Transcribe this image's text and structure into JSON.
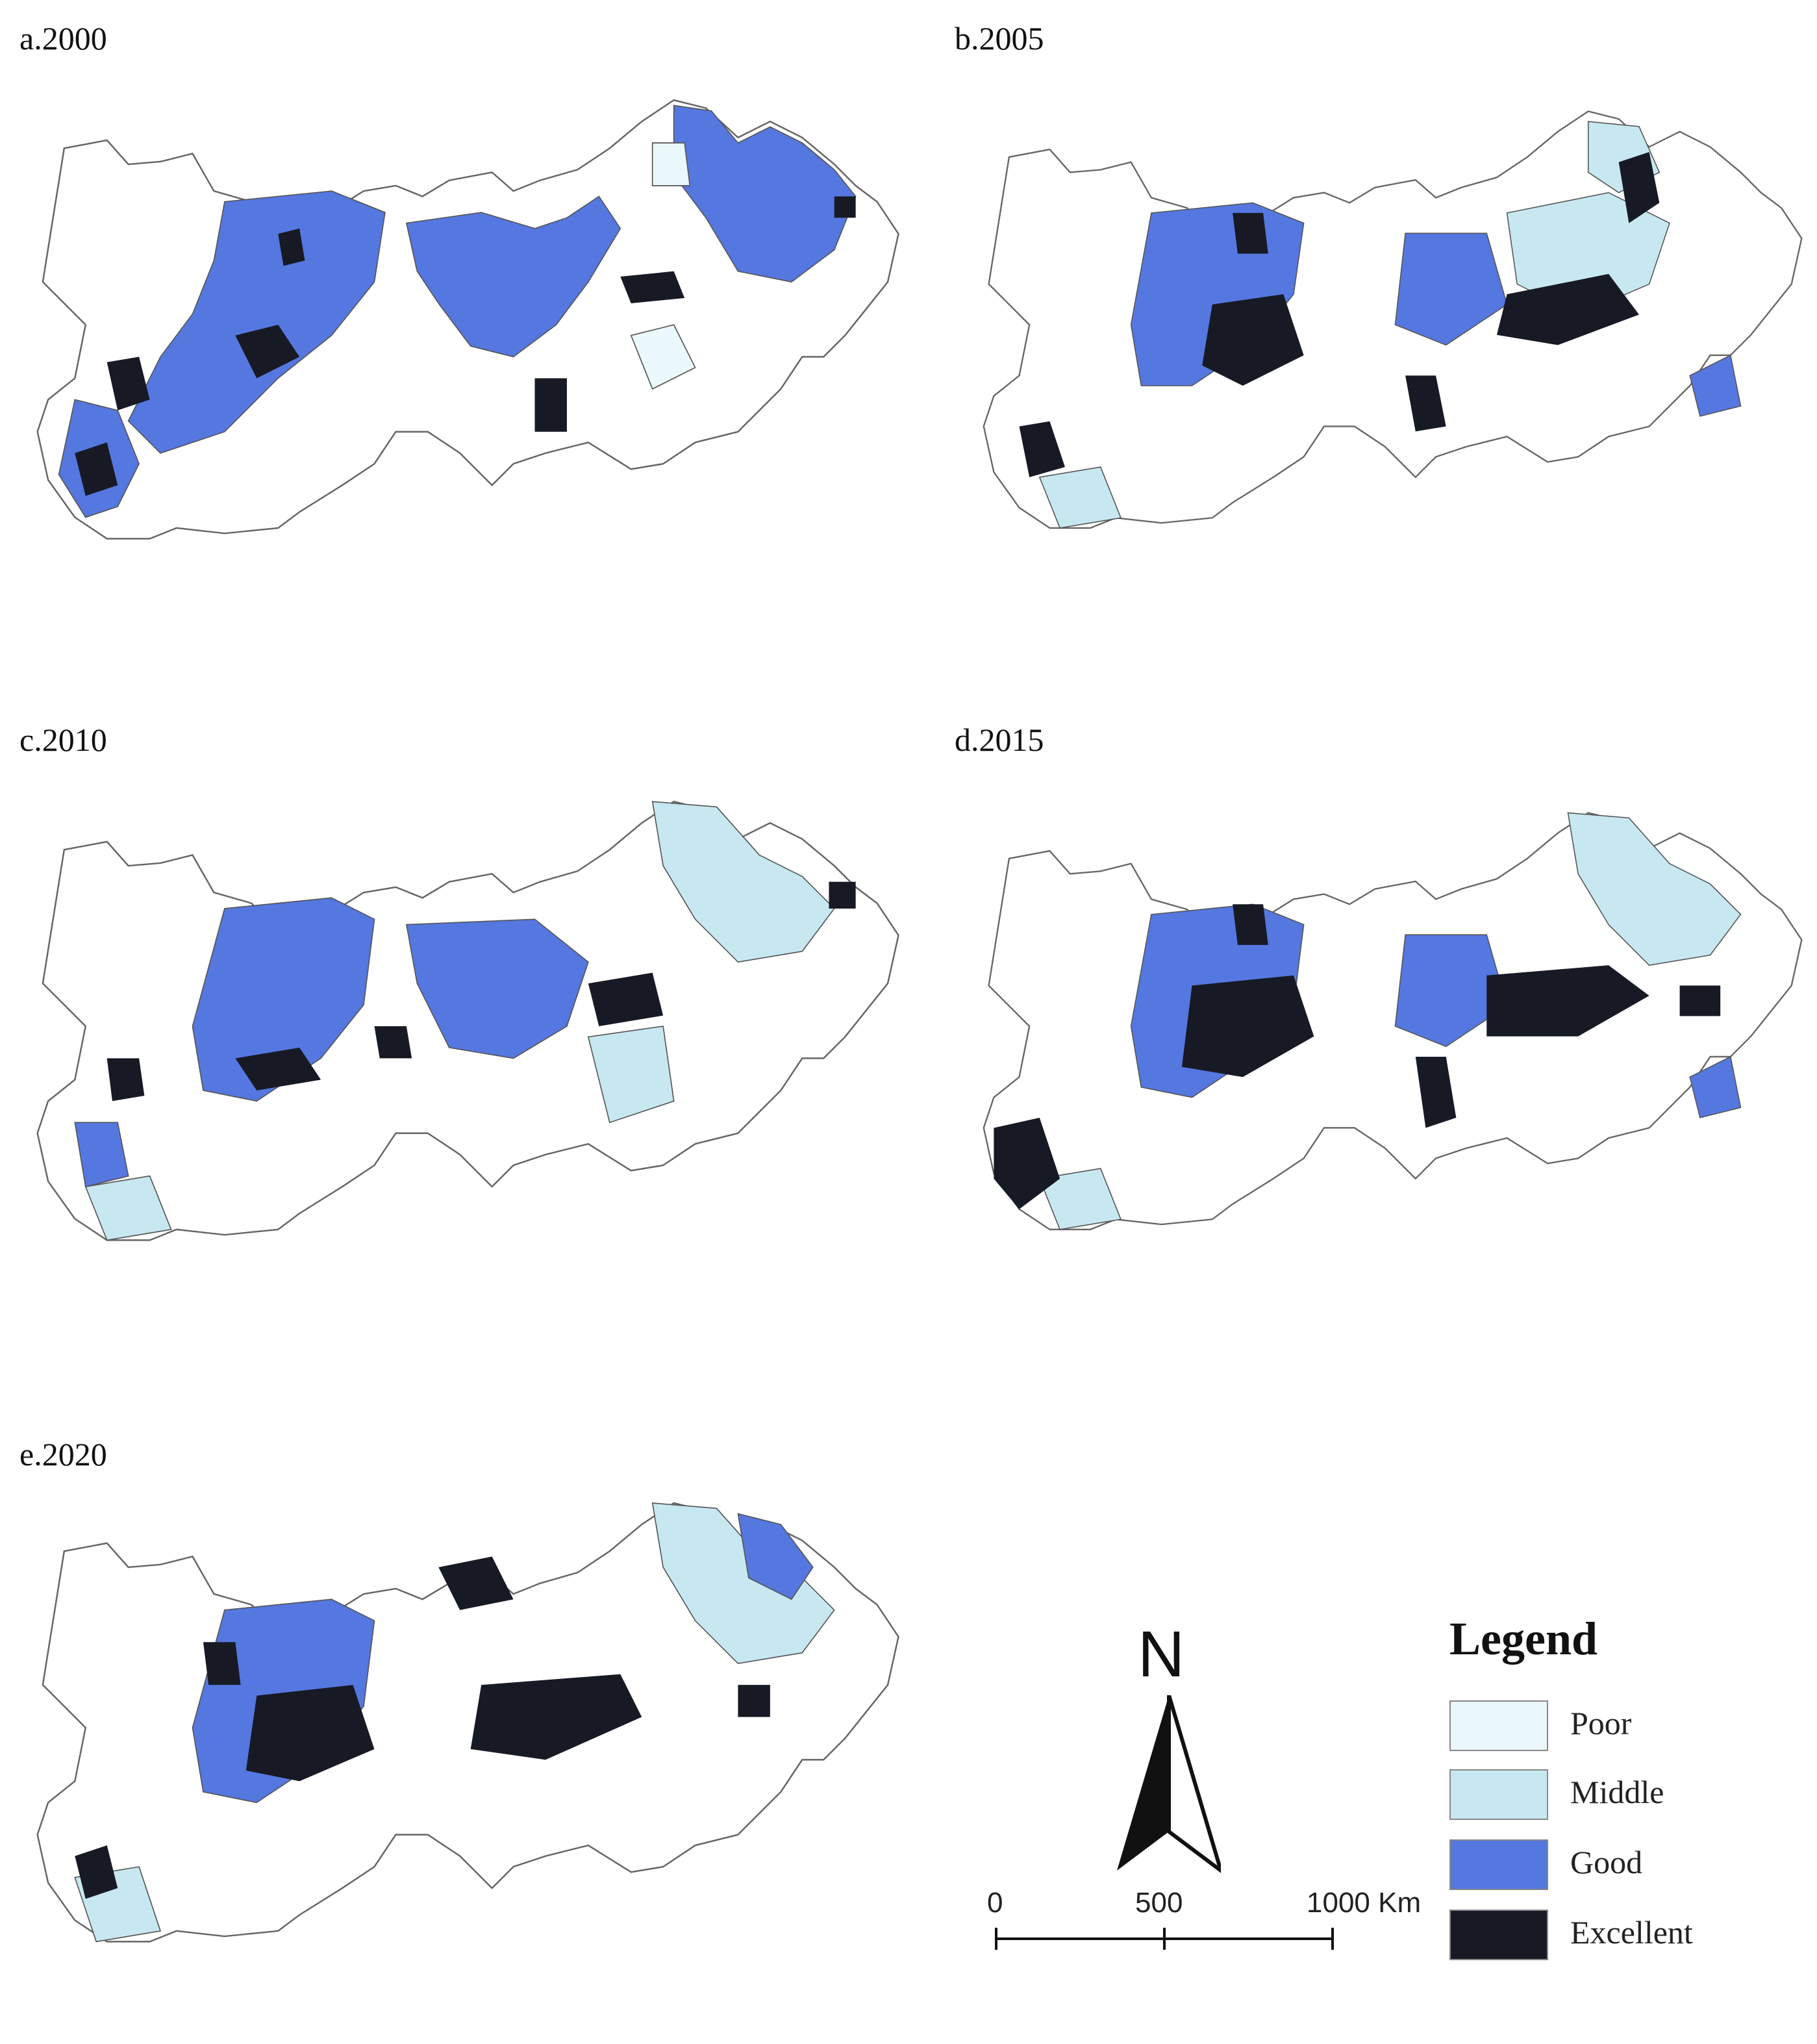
{
  "panels": [
    {
      "label": "a.2000"
    },
    {
      "label": "b.2005"
    },
    {
      "label": "c.2010"
    },
    {
      "label": "d.2015"
    },
    {
      "label": "e.2020"
    }
  ],
  "legend": {
    "title": "Legend",
    "items": [
      {
        "label": "Poor",
        "color": "#eaf7fb"
      },
      {
        "label": "Middle",
        "color": "#c8e8f1"
      },
      {
        "label": "Good",
        "color": "#5577e0"
      },
      {
        "label": "Excellent",
        "color": "#171a24"
      }
    ]
  },
  "north_arrow": {
    "label": "N"
  },
  "scale_bar": {
    "ticks": [
      "0",
      "500",
      "1000 Km"
    ]
  }
}
